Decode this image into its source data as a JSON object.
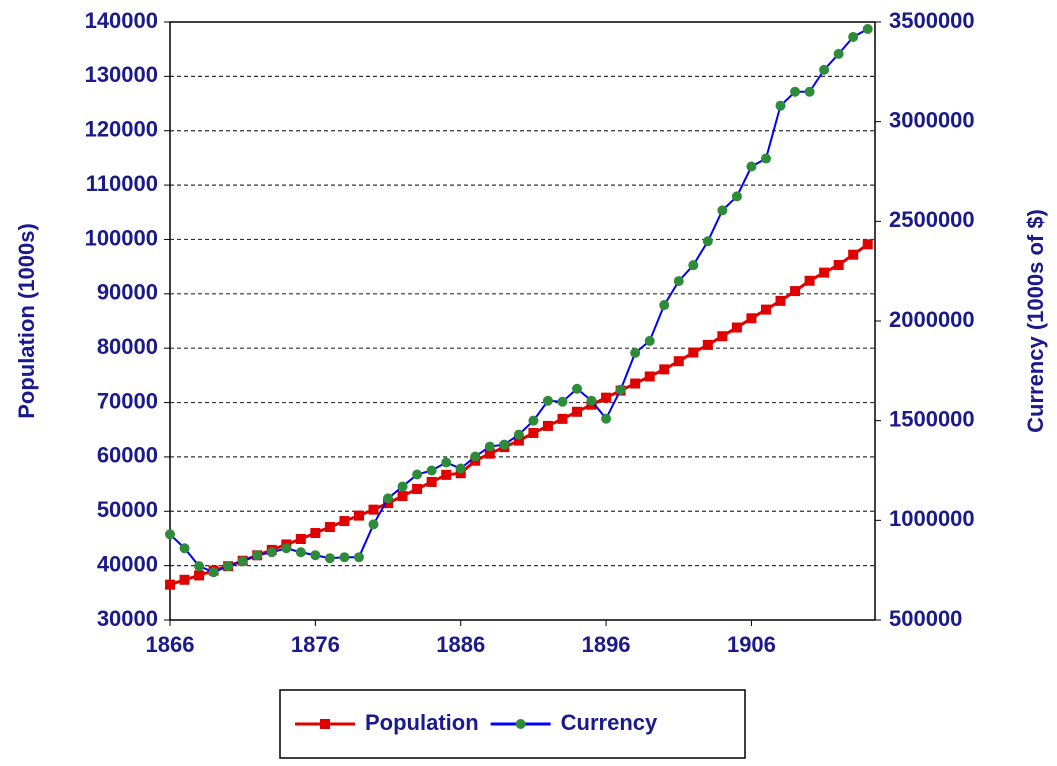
{
  "chart_data": {
    "type": "line",
    "x": [
      1866,
      1867,
      1868,
      1869,
      1870,
      1871,
      1872,
      1873,
      1874,
      1875,
      1876,
      1877,
      1878,
      1879,
      1880,
      1881,
      1882,
      1883,
      1884,
      1885,
      1886,
      1887,
      1888,
      1889,
      1890,
      1891,
      1892,
      1893,
      1894,
      1895,
      1896,
      1897,
      1898,
      1899,
      1900,
      1901,
      1902,
      1903,
      1904,
      1905,
      1906,
      1907,
      1908,
      1909,
      1910,
      1911,
      1912,
      1913,
      1914
    ],
    "series": [
      {
        "name": "Population",
        "color": "#e00000",
        "marker_color": "#e00000",
        "marker": "square",
        "values": [
          36500,
          37400,
          38200,
          39100,
          39900,
          40900,
          41900,
          42900,
          43900,
          44900,
          46000,
          47100,
          48200,
          49200,
          50300,
          51500,
          52800,
          54100,
          55400,
          56700,
          57000,
          59300,
          60600,
          61800,
          63000,
          64400,
          65700,
          67000,
          68300,
          69600,
          70900,
          72200,
          73500,
          74800,
          76100,
          77600,
          79200,
          80600,
          82200,
          83800,
          85500,
          87100,
          88700,
          90500,
          92400,
          93900,
          95300,
          97200,
          99100
        ]
      },
      {
        "name": "Currency",
        "color": "#0000ff",
        "marker_color": "#2e8b3a",
        "marker": "circle",
        "axis": "y2",
        "values": [
          930000,
          860000,
          770000,
          740000,
          770000,
          795000,
          825000,
          840000,
          860000,
          840000,
          825000,
          810000,
          815000,
          815000,
          980000,
          1110000,
          1170000,
          1230000,
          1250000,
          1290000,
          1260000,
          1320000,
          1370000,
          1380000,
          1430000,
          1500000,
          1600000,
          1595000,
          1660000,
          1600000,
          1510000,
          1655000,
          1840000,
          1900000,
          2080000,
          2200000,
          2280000,
          2400000,
          2555000,
          2625000,
          2775000,
          2815000,
          3080000,
          3150000,
          3150000,
          3260000,
          3340000,
          3425000,
          3465000
        ]
      }
    ],
    "y_label": "Population (1000s)",
    "y2_label": "Currency (1000s of $)",
    "xlim": [
      1866,
      1914.5
    ],
    "xticks": [
      1866,
      1876,
      1886,
      1896,
      1906
    ],
    "ylim": [
      30000,
      140000
    ],
    "yticks": [
      30000,
      40000,
      50000,
      60000,
      70000,
      80000,
      90000,
      100000,
      110000,
      120000,
      130000,
      140000
    ],
    "y2lim": [
      500000,
      3500000
    ],
    "y2ticks": [
      500000,
      1000000,
      1500000,
      2000000,
      2500000,
      3000000,
      3500000
    ],
    "grid": true,
    "legend": "bottom"
  }
}
